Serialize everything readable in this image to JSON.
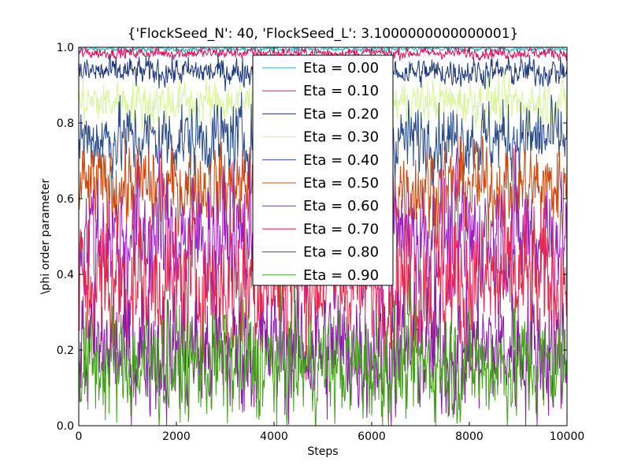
{
  "chart_data": {
    "type": "line",
    "title": "{'FlockSeed_N': 40, 'FlockSeed_L': 3.1000000000000001}",
    "xlabel": "Steps",
    "ylabel": "\\phi order parameter",
    "xlim": [
      0,
      10000
    ],
    "ylim": [
      0.0,
      1.0
    ],
    "xticks": [
      "0",
      "2000",
      "4000",
      "6000",
      "8000",
      "10000"
    ],
    "yticks": [
      "0.0",
      "0.2",
      "0.4",
      "0.6",
      "0.8",
      "1.0"
    ],
    "grid": false,
    "legend_position": "upper-center",
    "series": [
      {
        "name": "Eta = 0.00",
        "color": "#17becf",
        "mean": 0.995,
        "spread": 0.003
      },
      {
        "name": "Eta = 0.10",
        "color": "#e0115f",
        "mean": 0.985,
        "spread": 0.007
      },
      {
        "name": "Eta = 0.20",
        "color": "#1f3a7a",
        "mean": 0.935,
        "spread": 0.018
      },
      {
        "name": "Eta = 0.30",
        "color": "#d9f59a",
        "mean": 0.855,
        "spread": 0.028
      },
      {
        "name": "Eta = 0.40",
        "color": "#2b4d8c",
        "mean": 0.76,
        "spread": 0.045
      },
      {
        "name": "Eta = 0.50",
        "color": "#cc4a10",
        "mean": 0.63,
        "spread": 0.055
      },
      {
        "name": "Eta = 0.60",
        "color": "#9b1fc1",
        "mean": 0.5,
        "spread": 0.08
      },
      {
        "name": "Eta = 0.70",
        "color": "#e8254a",
        "mean": 0.38,
        "spread": 0.09
      },
      {
        "name": "Eta = 0.80",
        "color": "#8a1aa8",
        "mean": 0.2,
        "spread": 0.08
      },
      {
        "name": "Eta = 0.90",
        "color": "#44a01a",
        "mean": 0.16,
        "spread": 0.07
      }
    ]
  }
}
